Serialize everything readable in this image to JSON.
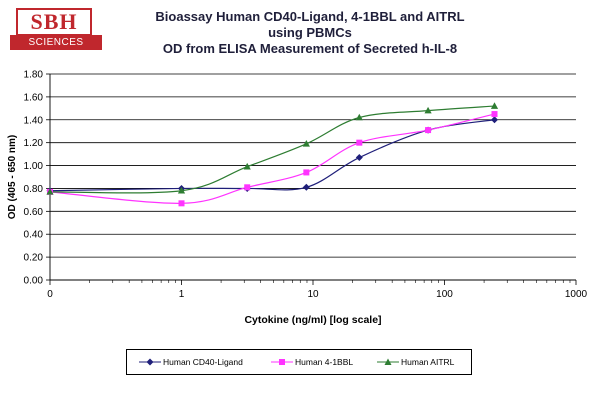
{
  "logo": {
    "top_text": "SBH",
    "bottom_text": "SCIENCES"
  },
  "colors": {
    "series1": "#1f1f7a",
    "series2": "#ff33ff",
    "series3": "#2e7d32",
    "logo": "#c0272d"
  },
  "chart_data": {
    "type": "line",
    "title": "Bioassay Human CD40-Ligand, 4-1BBL and AITRL",
    "subtitle": "using PBMCs",
    "subtitle2": "OD from ELISA Measurement of Secreted h-IL-8",
    "xlabel": "Cytokine (ng/ml) [log scale]",
    "ylabel": "OD (405 - 650 nm)",
    "x_scale": "log",
    "xlim": [
      0.1,
      1000
    ],
    "ylim": [
      0,
      1.8
    ],
    "y_ticks": [
      "0.00",
      "0.20",
      "0.40",
      "0.60",
      "0.80",
      "1.00",
      "1.20",
      "1.40",
      "1.60",
      "1.80"
    ],
    "x_ticks": [
      "0",
      "1",
      "10",
      "100",
      "1000"
    ],
    "grid": true,
    "legend_position": "bottom",
    "series": [
      {
        "name": "Human CD40-Ligand",
        "marker": "diamond",
        "x": [
          0.1,
          1,
          3.16,
          8.9,
          22.5,
          75,
          240
        ],
        "y": [
          0.78,
          0.8,
          0.8,
          0.81,
          1.07,
          1.31,
          1.4
        ]
      },
      {
        "name": "Human 4-1BBL",
        "marker": "square",
        "x": [
          0.1,
          1,
          3.16,
          8.9,
          22.5,
          75,
          240
        ],
        "y": [
          0.77,
          0.67,
          0.81,
          0.94,
          1.2,
          1.31,
          1.45
        ]
      },
      {
        "name": "Human AITRL",
        "marker": "triangle",
        "x": [
          0.1,
          1,
          3.16,
          8.9,
          22.5,
          75,
          240
        ],
        "y": [
          0.77,
          0.78,
          0.99,
          1.19,
          1.42,
          1.48,
          1.52
        ]
      }
    ]
  }
}
